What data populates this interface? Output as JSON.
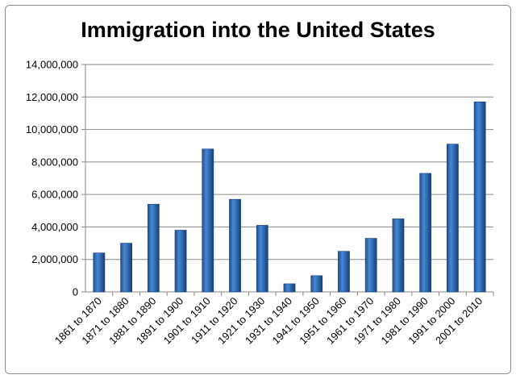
{
  "chart_data": {
    "type": "bar",
    "title": "Immigration into the United States",
    "categories": [
      "1861 to 1870",
      "1871 to 1880",
      "1881 to 1890",
      "1891 to 1900",
      "1901 to 1910",
      "1911 to 1920",
      "1921 to 1930",
      "1931 to 1940",
      "1941 to 1950",
      "1951 to 1960",
      "1961 to 1970",
      "1971 to 1980",
      "1981 to 1990",
      "1991 to 2000",
      "2001 to 2010"
    ],
    "values": [
      2400000,
      3000000,
      5400000,
      3800000,
      8800000,
      5700000,
      4100000,
      500000,
      1000000,
      2500000,
      3300000,
      4500000,
      7300000,
      9100000,
      11700000
    ],
    "ylim": [
      0,
      14000000
    ],
    "yticks": [
      0,
      2000000,
      4000000,
      6000000,
      8000000,
      10000000,
      12000000,
      14000000
    ],
    "ytick_labels": [
      "0",
      "2,000,000",
      "4,000,000",
      "6,000,000",
      "8,000,000",
      "10,000,000",
      "12,000,000",
      "14,000,000"
    ],
    "xlabel": "",
    "ylabel": "",
    "grid": true,
    "legend": "none",
    "bar_color": "#2e6bb5"
  }
}
